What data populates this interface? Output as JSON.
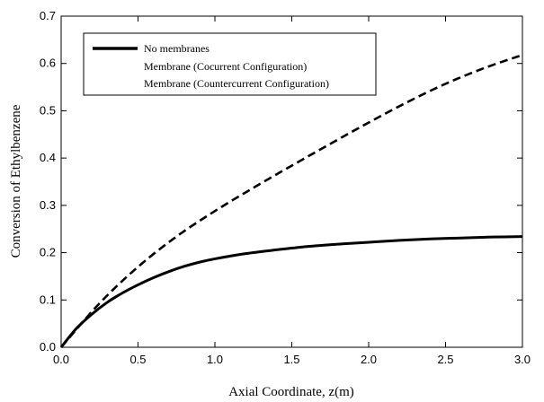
{
  "chart_data": {
    "type": "line",
    "xlabel": "Axial Coordinate, z(m)",
    "ylabel": "Conversion of Ethylbenzene",
    "xlim": [
      0,
      3
    ],
    "ylim": [
      0,
      0.7
    ],
    "xticks": [
      "0.0",
      "0.5",
      "1.0",
      "1.5",
      "2.0",
      "2.5",
      "3.0"
    ],
    "yticks": [
      "0.0",
      "0.1",
      "0.2",
      "0.3",
      "0.4",
      "0.5",
      "0.6",
      "0.7"
    ],
    "grid": false,
    "legend_position": "top-left",
    "series": [
      {
        "name": "No membranes",
        "style": "solid",
        "color": "#000000",
        "x": [
          0,
          0.1,
          0.2,
          0.3,
          0.4,
          0.5,
          0.6,
          0.7,
          0.8,
          0.9,
          1.0,
          1.2,
          1.4,
          1.6,
          1.8,
          2.0,
          2.2,
          2.4,
          2.6,
          2.8,
          3.0
        ],
        "y": [
          0,
          0.04,
          0.07,
          0.095,
          0.115,
          0.132,
          0.147,
          0.16,
          0.171,
          0.18,
          0.187,
          0.198,
          0.206,
          0.213,
          0.218,
          0.222,
          0.226,
          0.229,
          0.231,
          0.233,
          0.234
        ]
      },
      {
        "name": "Membrane (Cocurrent Configuration)",
        "style": "dashed",
        "color": "#000000",
        "x": [
          0,
          0.25,
          0.5,
          0.75,
          1.0,
          1.25,
          1.5,
          1.75,
          2.0,
          2.25,
          2.5,
          2.75,
          3.0
        ],
        "y": [
          0,
          0.093,
          0.17,
          0.234,
          0.288,
          0.337,
          0.384,
          0.43,
          0.475,
          0.518,
          0.557,
          0.59,
          0.618
        ]
      },
      {
        "name": "Membrane (Countercurrent Configuration)",
        "style": "none",
        "color": "#000000",
        "x": [],
        "y": []
      }
    ]
  }
}
